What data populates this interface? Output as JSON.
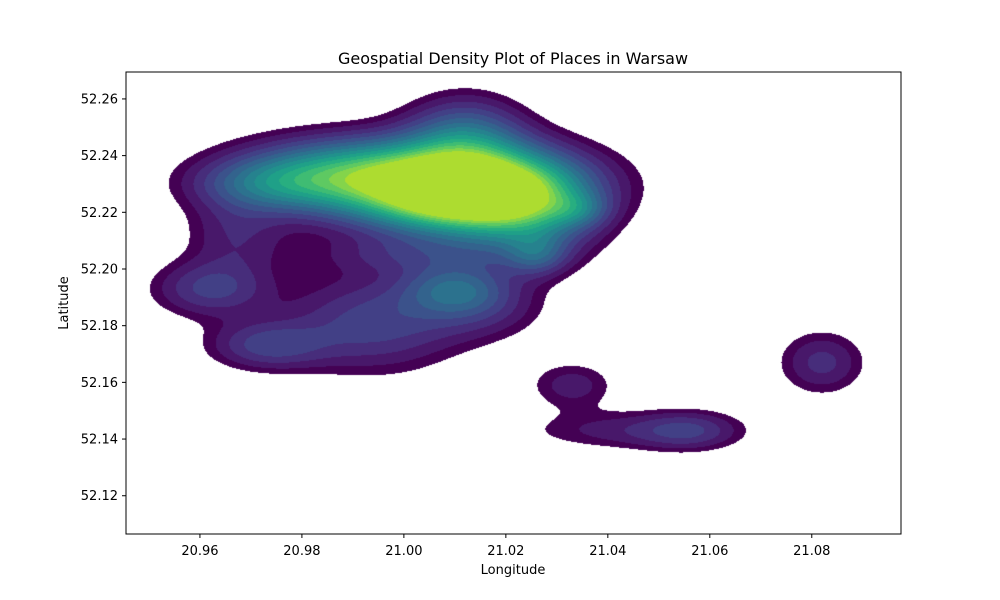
{
  "chart_data": {
    "type": "contourf",
    "title": "Geospatial Density Plot of Places in Warsaw",
    "xlabel": "Longitude",
    "ylabel": "Latitude",
    "xlim": [
      20.9455,
      21.0975
    ],
    "ylim": [
      52.1065,
      52.2695
    ],
    "xticks": [
      20.96,
      20.98,
      21.0,
      21.02,
      21.04,
      21.06,
      21.08
    ],
    "xtick_labels": [
      "20.96",
      "20.98",
      "21.00",
      "21.02",
      "21.04",
      "21.06",
      "21.08"
    ],
    "yticks": [
      52.12,
      52.14,
      52.16,
      52.18,
      52.2,
      52.22,
      52.24,
      52.26
    ],
    "ytick_labels": [
      "52.12",
      "52.14",
      "52.16",
      "52.18",
      "52.20",
      "52.22",
      "52.24",
      "52.26"
    ],
    "grid": false,
    "colormap": "viridis",
    "level_colors": [
      "#440154",
      "#48186a",
      "#472d7b",
      "#424086",
      "#3b528b",
      "#33638d",
      "#2c728e",
      "#26828e",
      "#21918c",
      "#1fa088",
      "#28ae80",
      "#3fbc73",
      "#5ec962",
      "#84d44b",
      "#addc30"
    ],
    "density_centers": [
      {
        "lon": 21.012,
        "lat": 52.2265,
        "weight": 1.0,
        "spread_lon": 0.012,
        "spread_lat": 0.009
      },
      {
        "lon": 21.003,
        "lat": 52.231,
        "weight": 0.55,
        "spread_lon": 0.02,
        "spread_lat": 0.01
      },
      {
        "lon": 21.012,
        "lat": 52.246,
        "weight": 0.35,
        "spread_lon": 0.008,
        "spread_lat": 0.01
      },
      {
        "lon": 21.025,
        "lat": 52.22,
        "weight": 0.35,
        "spread_lon": 0.009,
        "spread_lat": 0.012
      },
      {
        "lon": 20.988,
        "lat": 52.234,
        "weight": 0.32,
        "spread_lon": 0.014,
        "spread_lat": 0.008
      },
      {
        "lon": 20.974,
        "lat": 52.23,
        "weight": 0.22,
        "spread_lon": 0.01,
        "spread_lat": 0.006
      },
      {
        "lon": 21.026,
        "lat": 52.205,
        "weight": 0.2,
        "spread_lon": 0.004,
        "spread_lat": 0.005
      },
      {
        "lon": 21.034,
        "lat": 52.221,
        "weight": 0.16,
        "spread_lon": 0.004,
        "spread_lat": 0.004
      },
      {
        "lon": 20.967,
        "lat": 52.212,
        "weight": 0.14,
        "spread_lon": 0.007,
        "spread_lat": 0.01
      },
      {
        "lon": 20.962,
        "lat": 52.193,
        "weight": 0.22,
        "spread_lon": 0.008,
        "spread_lat": 0.007
      },
      {
        "lon": 21.01,
        "lat": 52.193,
        "weight": 0.28,
        "spread_lon": 0.007,
        "spread_lat": 0.006
      },
      {
        "lon": 21.003,
        "lat": 52.205,
        "weight": 0.14,
        "spread_lon": 0.014,
        "spread_lat": 0.005
      },
      {
        "lon": 20.994,
        "lat": 52.181,
        "weight": 0.24,
        "spread_lon": 0.012,
        "spread_lat": 0.012
      },
      {
        "lon": 21.015,
        "lat": 52.186,
        "weight": 0.14,
        "spread_lon": 0.009,
        "spread_lat": 0.008
      },
      {
        "lon": 20.973,
        "lat": 52.173,
        "weight": 0.22,
        "spread_lon": 0.008,
        "spread_lat": 0.006
      },
      {
        "lon": 21.033,
        "lat": 52.159,
        "weight": 0.14,
        "spread_lon": 0.006,
        "spread_lat": 0.006
      },
      {
        "lon": 21.043,
        "lat": 52.143,
        "weight": 0.13,
        "spread_lon": 0.014,
        "spread_lat": 0.005
      },
      {
        "lon": 21.056,
        "lat": 52.143,
        "weight": 0.16,
        "spread_lon": 0.007,
        "spread_lat": 0.005
      },
      {
        "lon": 21.082,
        "lat": 52.167,
        "weight": 0.18,
        "spread_lon": 0.006,
        "spread_lat": 0.008
      }
    ],
    "threshold": 0.075
  }
}
